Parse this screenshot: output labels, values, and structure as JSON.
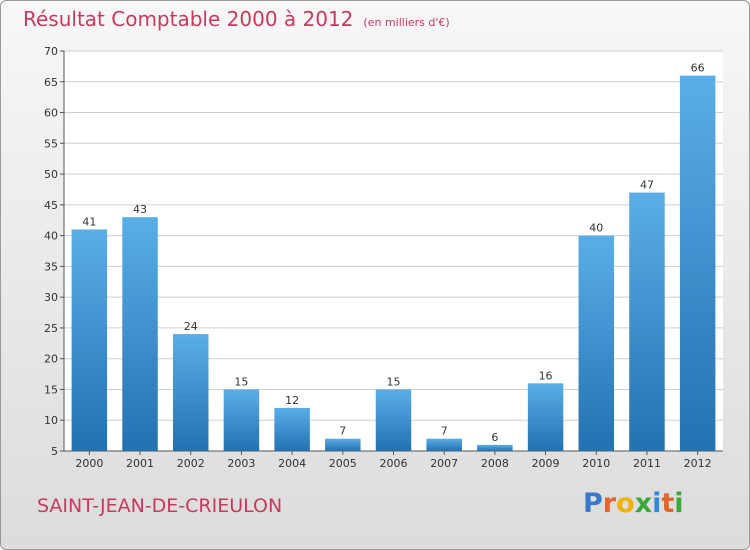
{
  "chart_data": {
    "type": "bar",
    "title": "Résultat Comptable 2000 à 2012",
    "subtitle": "(en milliers d'€)",
    "categories": [
      "2000",
      "2001",
      "2002",
      "2003",
      "2004",
      "2005",
      "2006",
      "2007",
      "2008",
      "2009",
      "2010",
      "2011",
      "2012"
    ],
    "values": [
      41,
      43,
      24,
      15,
      12,
      7,
      15,
      7,
      6,
      16,
      40,
      47,
      66
    ],
    "xlabel": "",
    "ylabel": "",
    "ylim": [
      5,
      70
    ],
    "yticks": [
      5,
      10,
      15,
      20,
      25,
      30,
      35,
      40,
      45,
      50,
      55,
      60,
      65,
      70
    ],
    "grid": true,
    "bar_color": "#3b8fd0",
    "bar_color_dark": "#2471b0"
  },
  "commune": "SAINT-JEAN-DE-CRIEULON",
  "logo": {
    "text": "Proxiti",
    "letters": [
      "P",
      "r",
      "o",
      "x",
      "i",
      "t",
      "i"
    ],
    "colors": [
      "#3a78c9",
      "#e0662a",
      "#f0b400",
      "#3ba83a",
      "#2f8ad8",
      "#e0662a",
      "#3ba83a"
    ]
  },
  "colors": {
    "title": "#c83a5c"
  }
}
